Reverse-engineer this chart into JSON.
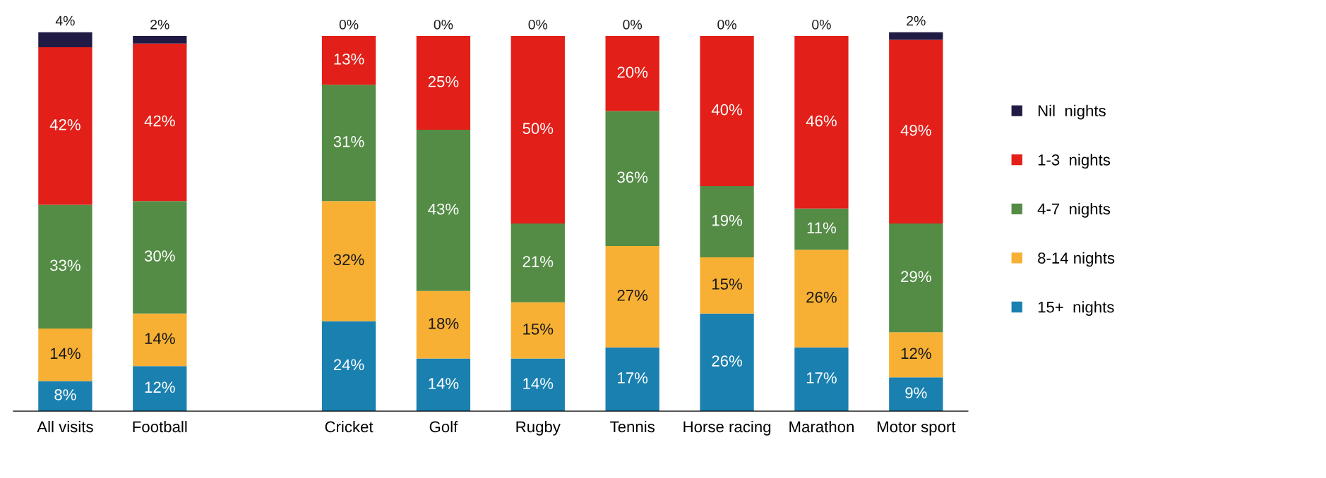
{
  "chart_data": {
    "type": "bar",
    "stacked": true,
    "legend": "right",
    "grid": false,
    "tick_labels": "x",
    "categories": [
      "All visits",
      "Football",
      null,
      "Cricket",
      "Golf",
      "Rugby",
      "Tennis",
      "Horse racing",
      "Marathon",
      "Motor sport"
    ],
    "series": [
      {
        "name": "15+  nights",
        "color": "#1a80b0",
        "values": [
          8,
          12,
          null,
          24,
          14,
          14,
          17,
          26,
          17,
          9
        ],
        "value_labels": [
          "8%",
          "12%",
          null,
          "24%",
          "14%",
          "14%",
          "17%",
          "26%",
          "17%",
          "9%"
        ]
      },
      {
        "name": "8-14 nights",
        "color": "#f7b034",
        "values": [
          14,
          14,
          null,
          32,
          18,
          15,
          27,
          15,
          26,
          12
        ],
        "value_labels": [
          "14%",
          "14%",
          null,
          "32%",
          "18%",
          "15%",
          "27%",
          "15%",
          "26%",
          "12%"
        ]
      },
      {
        "name": "4-7  nights",
        "color": "#548c46",
        "values": [
          33,
          30,
          null,
          31,
          43,
          21,
          36,
          19,
          11,
          29
        ],
        "value_labels": [
          "33%",
          "30%",
          null,
          "31%",
          "43%",
          "21%",
          "36%",
          "19%",
          "11%",
          "29%"
        ]
      },
      {
        "name": "1-3  nights",
        "color": "#e21f18",
        "values": [
          42,
          42,
          null,
          13,
          25,
          50,
          20,
          40,
          46,
          49
        ],
        "value_labels": [
          "42%",
          "42%",
          null,
          "13%",
          "25%",
          "50%",
          "20%",
          "40%",
          "46%",
          "49%"
        ]
      },
      {
        "name": "Nil  nights",
        "color": "#201b45",
        "values": [
          4,
          2,
          null,
          0,
          0,
          0,
          0,
          0,
          0,
          2
        ],
        "value_labels": [
          "4%",
          "2%",
          null,
          "0%",
          "0%",
          "0%",
          "0%",
          "0%",
          "0%",
          "2%"
        ]
      }
    ]
  }
}
